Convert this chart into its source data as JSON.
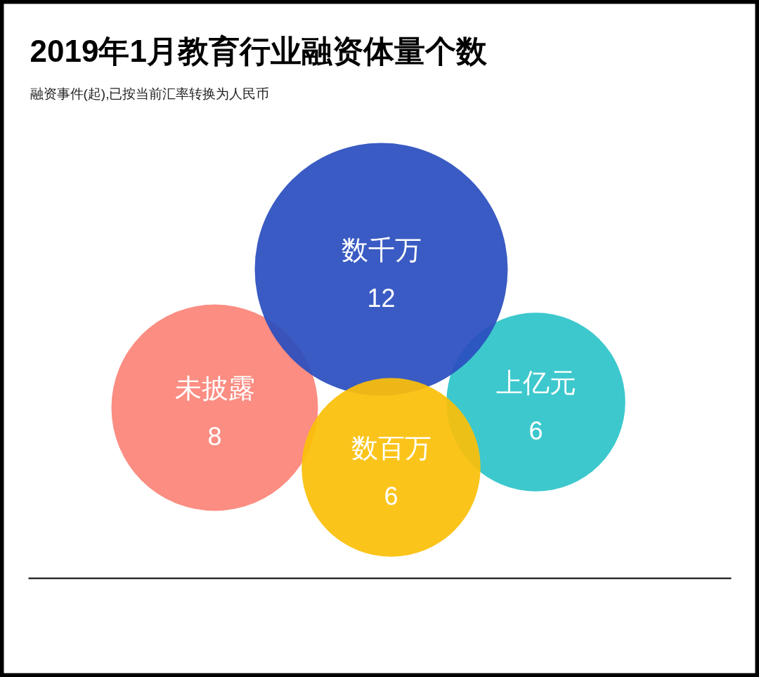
{
  "chart_data": {
    "type": "other",
    "title": "2019年1月教育行业融资体量个数",
    "subtitle": "融资事件(起),已按当前汇率转换为人民币",
    "categories": [
      "数千万",
      "未披露",
      "数百万",
      "上亿元"
    ],
    "values": [
      12,
      8,
      6,
      6
    ],
    "colors": [
      "#2b4fbe",
      "#fb8479",
      "#fbbf0a",
      "#2ec4c9"
    ],
    "data_labels": true
  }
}
